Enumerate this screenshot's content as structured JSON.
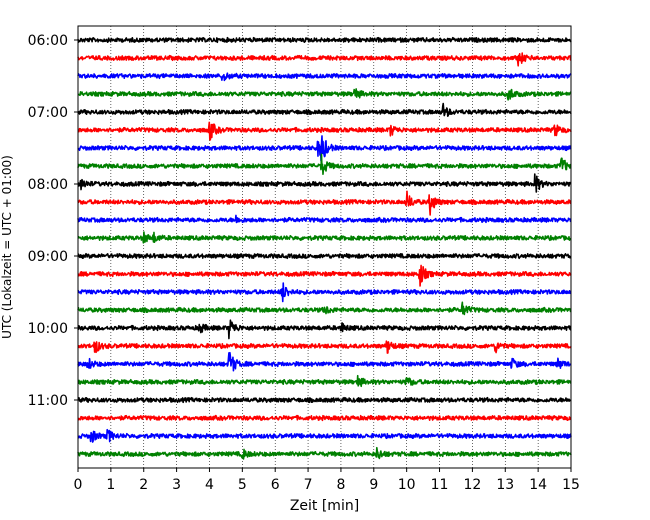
{
  "chart_data": {
    "type": "line",
    "title": "",
    "xlabel": "Zeit  [min]",
    "ylabel": "UTC (Lokalzeit = UTC + 01:00)",
    "xlim": [
      0,
      15
    ],
    "x_ticks": [
      0,
      1,
      2,
      3,
      4,
      5,
      6,
      7,
      8,
      9,
      10,
      11,
      12,
      13,
      14,
      15
    ],
    "x_tick_labels": [
      "0",
      "1",
      "2",
      "3",
      "4",
      "5",
      "6",
      "7",
      "8",
      "9",
      "10",
      "11",
      "12",
      "13",
      "14",
      "15"
    ],
    "y_tick_labels": [
      {
        "label": "06:00",
        "row": 0
      },
      {
        "label": "07:00",
        "row": 4
      },
      {
        "label": "08:00",
        "row": 8
      },
      {
        "label": "09:00",
        "row": 12
      },
      {
        "label": "10:00",
        "row": 16
      },
      {
        "label": "11:00",
        "row": 20
      }
    ],
    "vertical_grid": "dotted",
    "colors": [
      "#000000",
      "#ff0000",
      "#0000ff",
      "#008000"
    ],
    "series": [
      {
        "start": "06:00",
        "color": "#000000",
        "events": []
      },
      {
        "start": "06:15",
        "color": "#ff0000",
        "events": [
          {
            "t": 13.4,
            "amp": 0.5
          }
        ]
      },
      {
        "start": "06:30",
        "color": "#0000ff",
        "events": [
          {
            "t": 4.4,
            "amp": 0.35
          }
        ]
      },
      {
        "start": "06:45",
        "color": "#008000",
        "events": [
          {
            "t": 8.4,
            "amp": 0.4
          },
          {
            "t": 13.1,
            "amp": 0.45
          }
        ]
      },
      {
        "start": "07:00",
        "color": "#000000",
        "events": [
          {
            "t": 11.1,
            "amp": 0.5
          }
        ]
      },
      {
        "start": "07:15",
        "color": "#ff0000",
        "events": [
          {
            "t": 4.0,
            "amp": 0.7
          },
          {
            "t": 9.5,
            "amp": 0.35
          },
          {
            "t": 14.5,
            "amp": 0.4
          }
        ]
      },
      {
        "start": "07:30",
        "color": "#0000ff",
        "events": [
          {
            "t": 7.3,
            "amp": 0.5
          },
          {
            "t": 7.4,
            "amp": 0.9
          }
        ]
      },
      {
        "start": "07:45",
        "color": "#008000",
        "events": [
          {
            "t": 7.4,
            "amp": 0.7
          },
          {
            "t": 14.7,
            "amp": 0.6
          }
        ]
      },
      {
        "start": "08:00",
        "color": "#000000",
        "events": [
          {
            "t": 0.1,
            "amp": 0.3
          },
          {
            "t": 13.9,
            "amp": 0.6
          }
        ]
      },
      {
        "start": "08:15",
        "color": "#ff0000",
        "events": [
          {
            "t": 10.0,
            "amp": 0.6
          },
          {
            "t": 10.7,
            "amp": 0.8
          }
        ]
      },
      {
        "start": "08:30",
        "color": "#0000ff",
        "events": [
          {
            "t": 4.8,
            "amp": 0.2
          }
        ]
      },
      {
        "start": "08:45",
        "color": "#008000",
        "events": [
          {
            "t": 2.0,
            "amp": 0.3
          },
          {
            "t": 2.3,
            "amp": 0.25
          }
        ]
      },
      {
        "start": "09:00",
        "color": "#000000",
        "events": []
      },
      {
        "start": "09:15",
        "color": "#ff0000",
        "events": [
          {
            "t": 10.4,
            "amp": 0.8
          }
        ]
      },
      {
        "start": "09:30",
        "color": "#0000ff",
        "events": [
          {
            "t": 6.2,
            "amp": 0.7
          }
        ]
      },
      {
        "start": "09:45",
        "color": "#008000",
        "events": [
          {
            "t": 11.7,
            "amp": 0.45
          },
          {
            "t": 7.5,
            "amp": 0.25
          }
        ]
      },
      {
        "start": "10:00",
        "color": "#000000",
        "events": [
          {
            "t": 4.6,
            "amp": 0.7
          },
          {
            "t": 3.7,
            "amp": 0.3
          },
          {
            "t": 8.0,
            "amp": 0.3
          }
        ]
      },
      {
        "start": "10:15",
        "color": "#ff0000",
        "events": [
          {
            "t": 0.5,
            "amp": 0.5
          },
          {
            "t": 9.4,
            "amp": 0.45
          },
          {
            "t": 12.7,
            "amp": 0.35
          }
        ]
      },
      {
        "start": "10:30",
        "color": "#0000ff",
        "events": [
          {
            "t": 0.3,
            "amp": 0.35
          },
          {
            "t": 4.6,
            "amp": 0.95
          },
          {
            "t": 13.2,
            "amp": 0.35
          },
          {
            "t": 14.6,
            "amp": 0.3
          }
        ]
      },
      {
        "start": "10:45",
        "color": "#008000",
        "events": [
          {
            "t": 8.5,
            "amp": 0.35
          },
          {
            "t": 10.0,
            "amp": 0.3
          }
        ]
      },
      {
        "start": "11:00",
        "color": "#000000",
        "events": []
      },
      {
        "start": "11:15",
        "color": "#ff0000",
        "events": []
      },
      {
        "start": "11:30",
        "color": "#0000ff",
        "events": [
          {
            "t": 0.4,
            "amp": 0.45
          },
          {
            "t": 0.9,
            "amp": 0.4
          }
        ]
      },
      {
        "start": "11:45",
        "color": "#008000",
        "events": [
          {
            "t": 5.0,
            "amp": 0.3
          },
          {
            "t": 9.1,
            "amp": 0.4
          }
        ]
      }
    ]
  }
}
